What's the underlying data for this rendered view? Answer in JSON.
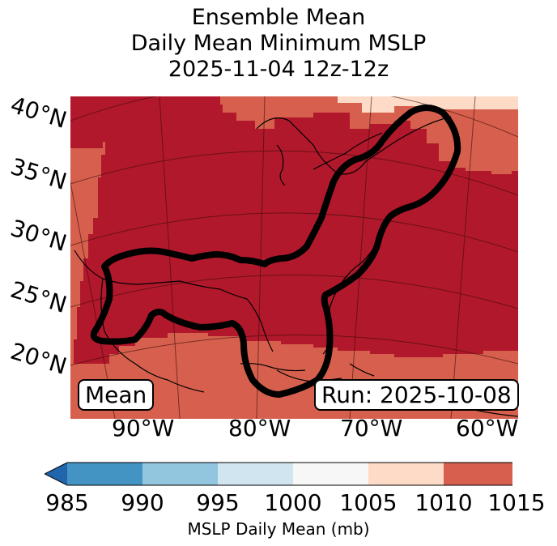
{
  "title": {
    "line1": "Ensemble Mean",
    "line2": "Daily Mean Minimum MSLP",
    "line3": "2025-11-04 12z-12z"
  },
  "map": {
    "lat_labels": [
      "40°N",
      "35°N",
      "30°N",
      "25°N",
      "20°N"
    ],
    "lon_labels": [
      "90°W",
      "80°W",
      "70°W",
      "60°W"
    ],
    "label_left": "Mean",
    "label_right": "Run: 2025-10-08",
    "colors": {
      "level_1010_1015": "#b2182b",
      "level_1005_1010": "#d6604d",
      "level_1000_1005": "#fddbc7",
      "outline": "#000000"
    }
  },
  "colorbar": {
    "ticks": [
      "985",
      "990",
      "995",
      "1000",
      "1005",
      "1010",
      "1015"
    ],
    "label": "MSLP Daily Mean (mb)",
    "colors": [
      "#2166ac",
      "#4393c3",
      "#92c5de",
      "#d1e5f0",
      "#f7f7f7",
      "#fddbc7",
      "#d6604d",
      "#b2182b"
    ]
  }
}
